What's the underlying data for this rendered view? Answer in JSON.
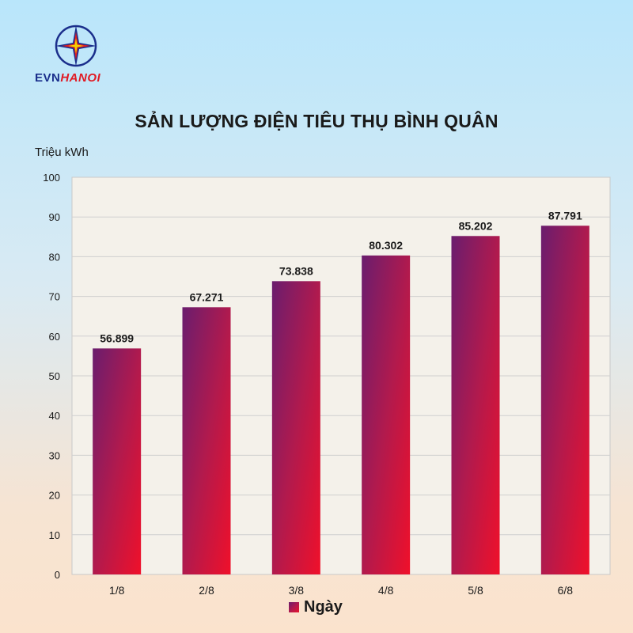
{
  "brand": {
    "part1": "EVN",
    "part2": "HANOI"
  },
  "chart_data": {
    "type": "bar",
    "title": "SẢN LƯỢNG ĐIỆN TIÊU THỤ BÌNH QUÂN",
    "ylabel": "Triệu kWh",
    "xlabel": "",
    "categories": [
      "1/8",
      "2/8",
      "3/8",
      "4/8",
      "5/8",
      "6/8"
    ],
    "series": [
      {
        "name": "Ngày",
        "values": [
          56.899,
          67.271,
          73.838,
          80.302,
          85.202,
          87.791
        ],
        "labels": [
          "56.899",
          "67.271",
          "73.838",
          "80.302",
          "85.202",
          "87.791"
        ]
      }
    ],
    "ylim": [
      0,
      100
    ],
    "yticks": [
      0,
      10,
      20,
      30,
      40,
      50,
      60,
      70,
      80,
      90,
      100
    ],
    "grid": true,
    "legend": "bottom",
    "colors": {
      "bar_start": "#6a1d6e",
      "bar_end": "#f0102a"
    }
  }
}
